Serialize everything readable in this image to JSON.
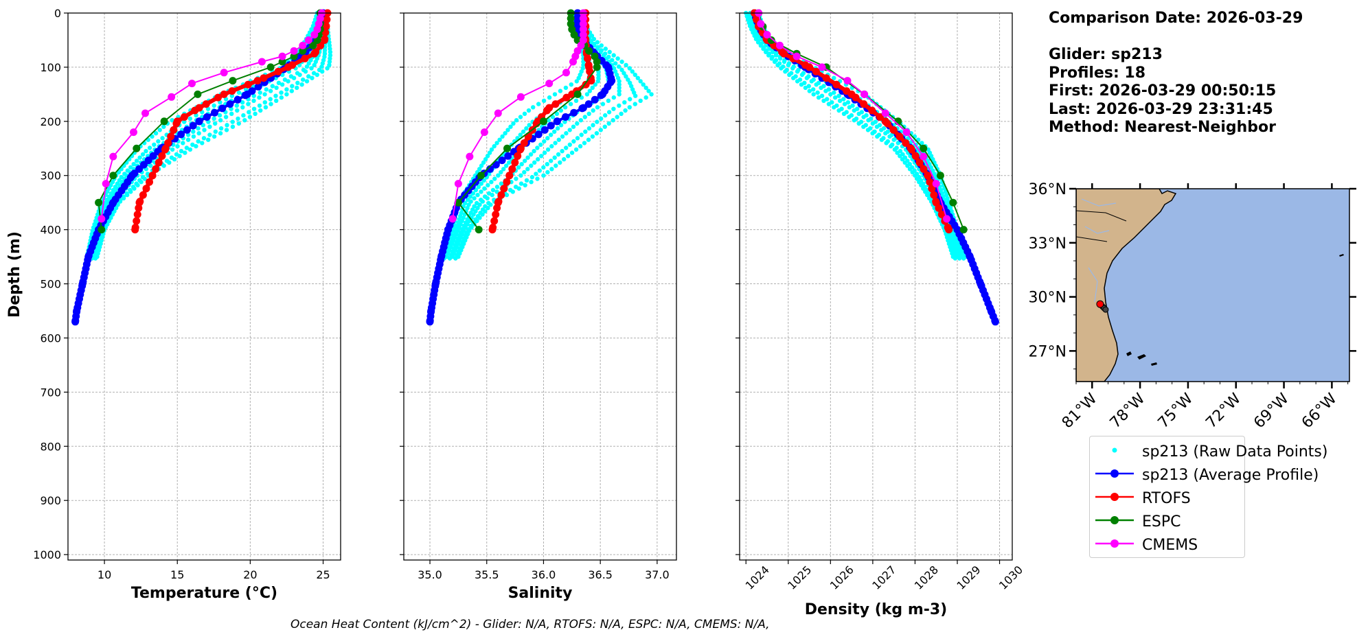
{
  "info": {
    "comparison_date": "Comparison Date: 2026-03-29",
    "glider": "Glider: sp213",
    "profiles": "Profiles: 18",
    "first": "First: 2026-03-29 00:50:15",
    "last": "Last: 2026-03-29 23:31:45",
    "method": "Method: Nearest-Neighbor"
  },
  "footer": "Ocean Heat Content (kJ/cm^2) - Glider: N/A,  RTOFS: N/A,  ESPC: N/A,  CMEMS: N/A,",
  "colors": {
    "raw": "#00ffff",
    "avg": "#0000ff",
    "rtofs": "#ff0000",
    "espc": "#008000",
    "cmems": "#ff00ff",
    "land": "#d2b48c",
    "ocean": "#9bb8e6"
  },
  "legend": {
    "items": [
      {
        "label": "sp213 (Raw Data Points)",
        "key": "raw"
      },
      {
        "label": "sp213 (Average Profile)",
        "key": "avg"
      },
      {
        "label": "RTOFS",
        "key": "rtofs"
      },
      {
        "label": "ESPC",
        "key": "espc"
      },
      {
        "label": "CMEMS",
        "key": "cmems"
      }
    ]
  },
  "map": {
    "lat_labels": [
      "36°N",
      "33°N",
      "30°N",
      "27°N"
    ],
    "lat_ticks": [
      36,
      33,
      30,
      27
    ],
    "lon_labels": [
      "81°W",
      "78°W",
      "75°W",
      "72°W",
      "69°W",
      "66°W"
    ],
    "lon_ticks": [
      -81,
      -78,
      -75,
      -72,
      -69,
      -66
    ],
    "extent": {
      "lon": [
        -82,
        -64.9
      ],
      "lat": [
        25.3,
        36
      ]
    },
    "glider_location": {
      "lon": -80.5,
      "lat": 29.6
    }
  },
  "chart_data": [
    {
      "type": "line",
      "xlabel": "Temperature (°C)",
      "ylabel": "Depth (m)",
      "xlim": [
        7.5,
        26.2
      ],
      "ylim": [
        1010,
        0
      ],
      "x_ticks": [
        10,
        15,
        20,
        25
      ],
      "x_tick_labels": [
        "10",
        "15",
        "20",
        "25"
      ],
      "y_ticks": [
        0,
        100,
        200,
        300,
        400,
        500,
        600,
        700,
        800,
        900,
        1000
      ],
      "y_tick_labels": [
        "0",
        "100",
        "200",
        "300",
        "400",
        "500",
        "600",
        "700",
        "800",
        "900",
        "1000"
      ],
      "grid": true,
      "raw_bands": [
        {
          "depth": [
            0,
            25,
            50,
            75,
            100,
            150,
            200,
            250,
            300,
            350,
            400,
            450
          ],
          "x_min": [
            24.6,
            24.3,
            23.8,
            23.2,
            22.2,
            18.0,
            14.5,
            12.3,
            10.8,
            9.8,
            9.2,
            8.8
          ],
          "x_max": [
            25.2,
            25.3,
            25.4,
            25.5,
            25.4,
            22.5,
            19.5,
            16.0,
            13.0,
            11.0,
            10.0,
            9.5
          ]
        }
      ],
      "series": [
        {
          "name": "sp213 (Average Profile)",
          "key": "avg",
          "depth": [
            0,
            25,
            50,
            75,
            100,
            150,
            200,
            250,
            300,
            350,
            400,
            450,
            500,
            550,
            570
          ],
          "x": [
            25.0,
            24.9,
            24.5,
            23.7,
            22.5,
            19.8,
            16.5,
            13.9,
            11.9,
            10.6,
            9.6,
            8.9,
            8.5,
            8.1,
            8.0
          ]
        },
        {
          "name": "RTOFS",
          "key": "rtofs",
          "depth": [
            0,
            25,
            50,
            75,
            100,
            125,
            150,
            175,
            200,
            250,
            300,
            350,
            400
          ],
          "x": [
            25.3,
            25.2,
            25.1,
            24.4,
            22.6,
            20.5,
            18.2,
            16.5,
            15.0,
            14.2,
            13.3,
            12.4,
            12.1
          ]
        },
        {
          "name": "ESPC",
          "key": "espc",
          "depth": [
            0,
            10,
            20,
            30,
            40,
            50,
            60,
            70,
            80,
            90,
            100,
            125,
            150,
            200,
            250,
            300,
            350,
            400
          ],
          "x": [
            24.8,
            24.8,
            24.8,
            24.8,
            24.7,
            24.6,
            24.3,
            23.6,
            23.0,
            22.2,
            21.4,
            18.8,
            16.4,
            14.1,
            12.2,
            10.6,
            9.6,
            9.8
          ]
        },
        {
          "name": "CMEMS",
          "key": "cmems",
          "depth": [
            0,
            10,
            20,
            30,
            40,
            50,
            60,
            70,
            80,
            90,
            110,
            130,
            155,
            185,
            220,
            265,
            315,
            380
          ],
          "x": [
            24.9,
            24.8,
            24.7,
            24.6,
            24.4,
            24.0,
            23.6,
            23.0,
            22.2,
            20.8,
            18.2,
            16.0,
            14.6,
            12.8,
            12.0,
            10.6,
            10.1,
            9.8
          ]
        }
      ]
    },
    {
      "type": "line",
      "xlabel": "Salinity",
      "ylabel": "",
      "xlim": [
        34.77,
        37.17
      ],
      "ylim": [
        1010,
        0
      ],
      "x_ticks": [
        35.0,
        35.5,
        36.0,
        36.5,
        37.0
      ],
      "x_tick_labels": [
        "35.0",
        "35.5",
        "36.0",
        "36.5",
        "37.0"
      ],
      "y_ticks": [
        0,
        100,
        200,
        300,
        400,
        500,
        600,
        700,
        800,
        900,
        1000
      ],
      "grid": true,
      "raw_bands": [
        {
          "depth": [
            0,
            50,
            75,
            100,
            125,
            150,
            175,
            200,
            250,
            300,
            350,
            400,
            450
          ],
          "x_min": [
            36.25,
            36.3,
            36.35,
            36.35,
            36.3,
            36.1,
            35.9,
            35.75,
            35.55,
            35.4,
            35.25,
            35.2,
            35.1
          ],
          "x_max": [
            36.3,
            36.45,
            36.6,
            36.75,
            36.85,
            36.95,
            36.75,
            36.6,
            36.3,
            36.0,
            35.55,
            35.35,
            35.25
          ]
        }
      ],
      "series": [
        {
          "name": "sp213 (Average Profile)",
          "key": "avg",
          "depth": [
            0,
            25,
            50,
            75,
            100,
            125,
            150,
            175,
            200,
            250,
            300,
            350,
            400,
            450,
            500,
            550,
            570
          ],
          "x": [
            36.3,
            36.3,
            36.35,
            36.45,
            36.57,
            36.6,
            36.52,
            36.35,
            36.12,
            35.78,
            35.45,
            35.25,
            35.16,
            35.1,
            35.05,
            35.01,
            35.0
          ]
        },
        {
          "name": "RTOFS",
          "key": "rtofs",
          "depth": [
            0,
            25,
            50,
            75,
            100,
            125,
            150,
            175,
            200,
            250,
            300,
            350,
            400
          ],
          "x": [
            36.37,
            36.37,
            36.37,
            36.38,
            36.4,
            36.42,
            36.25,
            36.05,
            35.95,
            35.8,
            35.7,
            35.6,
            35.55
          ]
        },
        {
          "name": "ESPC",
          "key": "espc",
          "depth": [
            0,
            10,
            20,
            30,
            40,
            50,
            60,
            70,
            80,
            90,
            100,
            150,
            200,
            250,
            300,
            350,
            400
          ],
          "x": [
            36.24,
            36.24,
            36.24,
            36.25,
            36.27,
            36.3,
            36.36,
            36.4,
            36.45,
            36.47,
            36.47,
            36.3,
            36.0,
            35.68,
            35.45,
            35.25,
            35.43
          ]
        },
        {
          "name": "CMEMS",
          "key": "cmems",
          "depth": [
            0,
            10,
            20,
            30,
            40,
            50,
            60,
            70,
            80,
            90,
            110,
            130,
            155,
            185,
            220,
            265,
            315,
            380
          ],
          "x": [
            36.35,
            36.35,
            36.35,
            36.35,
            36.35,
            36.35,
            36.33,
            36.3,
            36.28,
            36.26,
            36.2,
            36.05,
            35.8,
            35.6,
            35.48,
            35.35,
            35.25,
            35.2
          ]
        }
      ]
    },
    {
      "type": "line",
      "xlabel": "Density (kg m-3)",
      "ylabel": "",
      "xlim": [
        1023.85,
        1030.3
      ],
      "ylim": [
        1010,
        0
      ],
      "x_ticks": [
        1024,
        1025,
        1026,
        1027,
        1028,
        1029,
        1030
      ],
      "x_tick_labels": [
        "1024",
        "1025",
        "1026",
        "1027",
        "1028",
        "1029",
        "1030"
      ],
      "y_ticks": [
        0,
        100,
        200,
        300,
        400,
        500,
        600,
        700,
        800,
        900,
        1000
      ],
      "grid": true,
      "raw_bands": [
        {
          "depth": [
            0,
            25,
            50,
            75,
            100,
            150,
            200,
            250,
            300,
            350,
            400,
            450
          ],
          "x_min": [
            1024.0,
            1024.1,
            1024.25,
            1024.5,
            1024.8,
            1025.6,
            1026.6,
            1027.5,
            1028.0,
            1028.4,
            1028.7,
            1028.9
          ],
          "x_max": [
            1024.3,
            1024.4,
            1024.6,
            1025.0,
            1025.6,
            1026.8,
            1027.6,
            1028.3,
            1028.6,
            1028.8,
            1029.0,
            1029.2
          ]
        }
      ],
      "series": [
        {
          "name": "sp213 (Average Profile)",
          "key": "avg",
          "depth": [
            0,
            25,
            50,
            75,
            100,
            150,
            200,
            250,
            300,
            350,
            400,
            450,
            500,
            550,
            570
          ],
          "x": [
            1024.2,
            1024.3,
            1024.5,
            1024.9,
            1025.4,
            1026.4,
            1027.3,
            1027.9,
            1028.3,
            1028.6,
            1029.0,
            1029.3,
            1029.55,
            1029.8,
            1029.9
          ]
        },
        {
          "name": "RTOFS",
          "key": "rtofs",
          "depth": [
            0,
            25,
            50,
            75,
            100,
            150,
            200,
            250,
            300,
            350,
            400
          ],
          "x": [
            1024.2,
            1024.3,
            1024.5,
            1024.9,
            1025.5,
            1026.5,
            1027.3,
            1027.9,
            1028.3,
            1028.5,
            1028.8
          ]
        },
        {
          "name": "ESPC",
          "key": "espc",
          "depth": [
            0,
            25,
            50,
            75,
            100,
            150,
            200,
            250,
            300,
            350,
            400
          ],
          "x": [
            1024.3,
            1024.4,
            1024.6,
            1025.2,
            1025.9,
            1026.8,
            1027.6,
            1028.2,
            1028.6,
            1028.9,
            1029.15
          ]
        },
        {
          "name": "CMEMS",
          "key": "cmems",
          "depth": [
            0,
            20,
            40,
            60,
            80,
            100,
            125,
            150,
            185,
            220,
            265,
            315,
            380
          ],
          "x": [
            1024.3,
            1024.35,
            1024.5,
            1024.8,
            1025.2,
            1025.8,
            1026.4,
            1026.8,
            1027.3,
            1027.8,
            1028.2,
            1028.5,
            1028.75
          ]
        }
      ]
    }
  ]
}
